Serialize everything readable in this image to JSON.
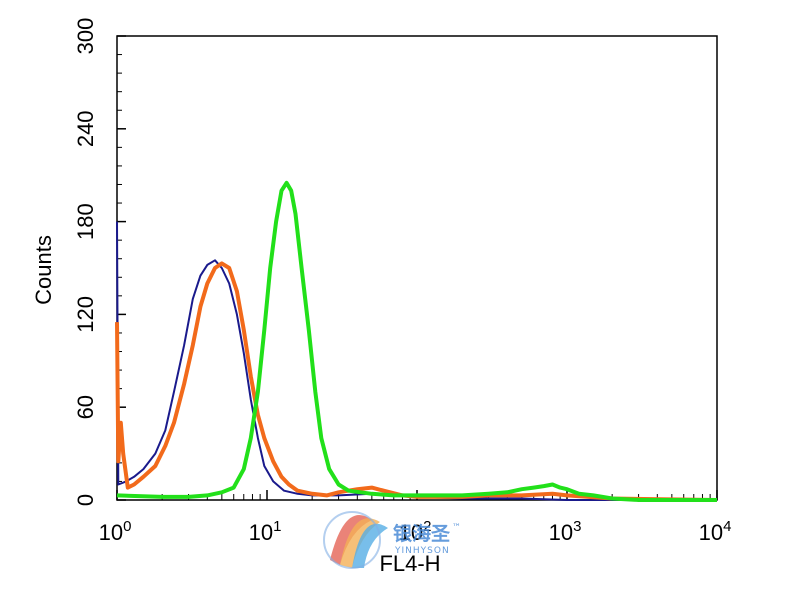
{
  "chart_data": {
    "type": "line",
    "title": "",
    "xlabel": "FL4-H",
    "ylabel": "Counts",
    "x_scale": "log",
    "xlim": [
      1,
      10000
    ],
    "ylim": [
      0,
      300
    ],
    "x_ticks": [
      {
        "base": "10",
        "exp": "0",
        "value": 1
      },
      {
        "base": "10",
        "exp": "1",
        "value": 10
      },
      {
        "base": "10",
        "exp": "2",
        "value": 100
      },
      {
        "base": "10",
        "exp": "3",
        "value": 1000
      },
      {
        "base": "10",
        "exp": "4",
        "value": 10000
      }
    ],
    "y_ticks": [
      "0",
      "60",
      "120",
      "180",
      "240",
      "300"
    ],
    "grid": false,
    "series": [
      {
        "color": "#1a1a8c",
        "points": [
          [
            1.0,
            180
          ],
          [
            1.02,
            10
          ],
          [
            1.15,
            12
          ],
          [
            1.3,
            15
          ],
          [
            1.5,
            20
          ],
          [
            1.8,
            30
          ],
          [
            2.1,
            45
          ],
          [
            2.4,
            70
          ],
          [
            2.8,
            100
          ],
          [
            3.2,
            130
          ],
          [
            3.6,
            145
          ],
          [
            4.0,
            152
          ],
          [
            4.5,
            155
          ],
          [
            5.0,
            150
          ],
          [
            5.6,
            140
          ],
          [
            6.3,
            120
          ],
          [
            7.0,
            95
          ],
          [
            7.8,
            65
          ],
          [
            8.7,
            40
          ],
          [
            9.6,
            22
          ],
          [
            11,
            12
          ],
          [
            13,
            6
          ],
          [
            16,
            4
          ],
          [
            20,
            3
          ],
          [
            30,
            3
          ],
          [
            50,
            4
          ],
          [
            70,
            3
          ],
          [
            100,
            2
          ],
          [
            200,
            1
          ],
          [
            500,
            1
          ],
          [
            1000,
            0
          ],
          [
            10000,
            0
          ]
        ]
      },
      {
        "color": "#f26a1b",
        "points": [
          [
            1.0,
            115
          ],
          [
            1.02,
            25
          ],
          [
            1.06,
            50
          ],
          [
            1.1,
            30
          ],
          [
            1.18,
            8
          ],
          [
            1.3,
            10
          ],
          [
            1.5,
            15
          ],
          [
            1.8,
            22
          ],
          [
            2.1,
            35
          ],
          [
            2.4,
            50
          ],
          [
            2.8,
            75
          ],
          [
            3.2,
            100
          ],
          [
            3.6,
            125
          ],
          [
            4.0,
            140
          ],
          [
            4.5,
            150
          ],
          [
            5.0,
            153
          ],
          [
            5.6,
            150
          ],
          [
            6.3,
            135
          ],
          [
            7.0,
            110
          ],
          [
            7.8,
            80
          ],
          [
            8.7,
            55
          ],
          [
            9.6,
            40
          ],
          [
            11,
            25
          ],
          [
            12.5,
            15
          ],
          [
            14,
            10
          ],
          [
            16,
            6
          ],
          [
            20,
            4
          ],
          [
            25,
            3
          ],
          [
            30,
            5
          ],
          [
            40,
            7
          ],
          [
            50,
            8
          ],
          [
            60,
            6
          ],
          [
            80,
            3
          ],
          [
            100,
            2
          ],
          [
            200,
            2
          ],
          [
            300,
            3
          ],
          [
            500,
            3
          ],
          [
            800,
            4
          ],
          [
            1000,
            3
          ],
          [
            2000,
            1
          ],
          [
            10000,
            0
          ]
        ]
      },
      {
        "color": "#22e01a",
        "points": [
          [
            1.0,
            3
          ],
          [
            2,
            2
          ],
          [
            3,
            2
          ],
          [
            4,
            3
          ],
          [
            5,
            5
          ],
          [
            6,
            8
          ],
          [
            7,
            20
          ],
          [
            7.8,
            40
          ],
          [
            8.7,
            70
          ],
          [
            9.6,
            110
          ],
          [
            10.5,
            150
          ],
          [
            11.5,
            180
          ],
          [
            12.5,
            200
          ],
          [
            13.5,
            205
          ],
          [
            14.5,
            200
          ],
          [
            15.5,
            185
          ],
          [
            17,
            150
          ],
          [
            19,
            110
          ],
          [
            21,
            70
          ],
          [
            23,
            40
          ],
          [
            26,
            20
          ],
          [
            30,
            10
          ],
          [
            35,
            6
          ],
          [
            50,
            4
          ],
          [
            70,
            3
          ],
          [
            100,
            3
          ],
          [
            200,
            3
          ],
          [
            300,
            4
          ],
          [
            400,
            5
          ],
          [
            500,
            7
          ],
          [
            600,
            8
          ],
          [
            700,
            9
          ],
          [
            800,
            10
          ],
          [
            900,
            8
          ],
          [
            1000,
            7
          ],
          [
            1200,
            4
          ],
          [
            1500,
            3
          ],
          [
            2000,
            1
          ],
          [
            3000,
            0
          ],
          [
            10000,
            0
          ]
        ]
      }
    ]
  },
  "watermark": {
    "text": "银海圣",
    "tm": "™",
    "sub": "YINHYSON"
  }
}
